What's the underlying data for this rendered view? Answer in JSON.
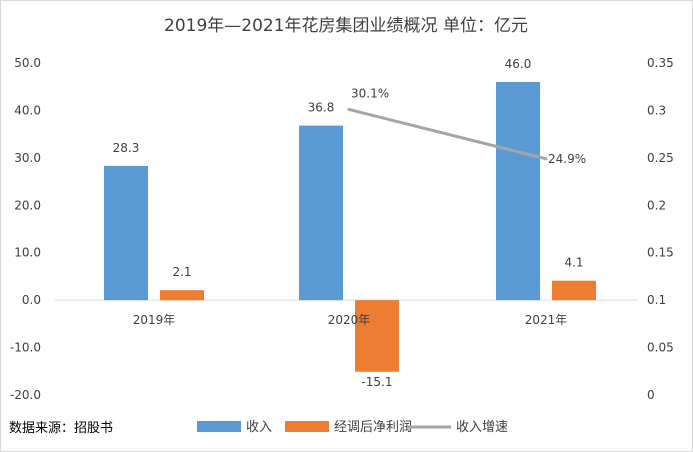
{
  "chart_data": {
    "type": "bar",
    "title": "2019年—2021年花房集团业绩概况 单位：亿元",
    "categories": [
      "2019年",
      "2020年",
      "2021年"
    ],
    "series": [
      {
        "name": "收入",
        "kind": "bar",
        "axis": "left",
        "values": [
          28.3,
          36.8,
          46.0
        ],
        "labels": [
          "28.3",
          "36.8",
          "46.0"
        ],
        "color": "#5b9bd5"
      },
      {
        "name": "经调后净利润",
        "kind": "bar",
        "axis": "left",
        "values": [
          2.1,
          -15.1,
          4.1
        ],
        "labels": [
          "2.1",
          "-15.1",
          "4.1"
        ],
        "color": "#ed7d31"
      },
      {
        "name": "收入增速",
        "kind": "line",
        "axis": "right",
        "values": [
          null,
          0.301,
          0.249
        ],
        "labels": [
          "",
          "30.1%",
          "24.9%"
        ],
        "color": "#a5a5a5"
      }
    ],
    "y_left": {
      "ylim": [
        -20,
        50
      ],
      "ticks": [
        50,
        40,
        30,
        20,
        10,
        0,
        -10,
        -20
      ],
      "tick_labels": [
        "50.0",
        "40.0",
        "30.0",
        "20.0",
        "10.0",
        "0.0",
        "-10.0",
        "-20.0"
      ]
    },
    "y_right": {
      "ylim": [
        0,
        0.35
      ],
      "ticks": [
        0.35,
        0.3,
        0.25,
        0.2,
        0.15,
        0.1,
        0.05,
        0
      ],
      "tick_labels": [
        "0.35",
        "0.3",
        "0.25",
        "0.2",
        "0.15",
        "0.1",
        "0.05",
        "0"
      ]
    },
    "grid": false,
    "legend_position": "bottom"
  },
  "source": "数据来源：招股书"
}
